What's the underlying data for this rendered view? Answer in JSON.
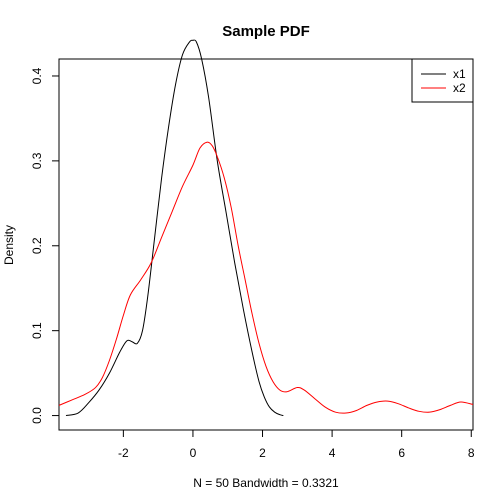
{
  "chart_data": {
    "type": "line",
    "title": "Sample PDF",
    "xlabel": "N = 50   Bandwidth = 0.3321",
    "ylabel": "Density",
    "xlim": [
      -3.85,
      8.05
    ],
    "ylim": [
      -0.017,
      0.42
    ],
    "xticks": [
      -2,
      0,
      2,
      4,
      6,
      8
    ],
    "xtick_labels": [
      "-2",
      "0",
      "2",
      "4",
      "6",
      "8"
    ],
    "yticks": [
      0.0,
      0.1,
      0.2,
      0.3,
      0.4
    ],
    "ytick_labels": [
      "0.0",
      "0.1",
      "0.2",
      "0.3",
      "0.4"
    ],
    "legend": {
      "position": "top-right",
      "entries": [
        {
          "label": "x1",
          "color": "#000000"
        },
        {
          "label": "x2",
          "color": "#ff0000"
        }
      ]
    },
    "series": [
      {
        "name": "x1",
        "color": "#000000",
        "x": [
          -3.65,
          -3.3,
          -3.0,
          -2.7,
          -2.4,
          -2.1,
          -1.9,
          -1.75,
          -1.6,
          -1.45,
          -1.3,
          -1.1,
          -0.9,
          -0.7,
          -0.5,
          -0.3,
          -0.1,
          0.0,
          0.1,
          0.25,
          0.45,
          0.7,
          0.95,
          1.2,
          1.45,
          1.7,
          1.9,
          2.05,
          2.2,
          2.35,
          2.5,
          2.6
        ],
        "y": [
          0.0,
          0.003,
          0.015,
          0.03,
          0.05,
          0.075,
          0.088,
          0.087,
          0.085,
          0.1,
          0.14,
          0.21,
          0.28,
          0.34,
          0.39,
          0.425,
          0.44,
          0.442,
          0.44,
          0.42,
          0.375,
          0.3,
          0.24,
          0.18,
          0.125,
          0.075,
          0.04,
          0.022,
          0.01,
          0.004,
          0.001,
          0.0
        ]
      },
      {
        "name": "x2",
        "color": "#ff0000",
        "x": [
          -3.85,
          -3.5,
          -3.1,
          -2.8,
          -2.6,
          -2.4,
          -2.2,
          -2.0,
          -1.8,
          -1.5,
          -1.2,
          -0.9,
          -0.6,
          -0.3,
          0.0,
          0.2,
          0.4,
          0.55,
          0.7,
          0.9,
          1.1,
          1.3,
          1.5,
          1.7,
          1.9,
          2.1,
          2.3,
          2.5,
          2.7,
          3.0,
          3.2,
          3.5,
          3.8,
          4.1,
          4.4,
          4.7,
          5.0,
          5.3,
          5.6,
          5.9,
          6.2,
          6.5,
          6.8,
          7.1,
          7.4,
          7.7,
          8.05
        ],
        "y": [
          0.012,
          0.018,
          0.025,
          0.033,
          0.045,
          0.065,
          0.09,
          0.118,
          0.142,
          0.16,
          0.18,
          0.21,
          0.24,
          0.27,
          0.295,
          0.315,
          0.322,
          0.318,
          0.305,
          0.28,
          0.245,
          0.2,
          0.16,
          0.12,
          0.085,
          0.058,
          0.04,
          0.03,
          0.028,
          0.033,
          0.03,
          0.02,
          0.01,
          0.004,
          0.003,
          0.006,
          0.012,
          0.016,
          0.017,
          0.014,
          0.009,
          0.005,
          0.004,
          0.007,
          0.012,
          0.016,
          0.013
        ]
      }
    ]
  }
}
